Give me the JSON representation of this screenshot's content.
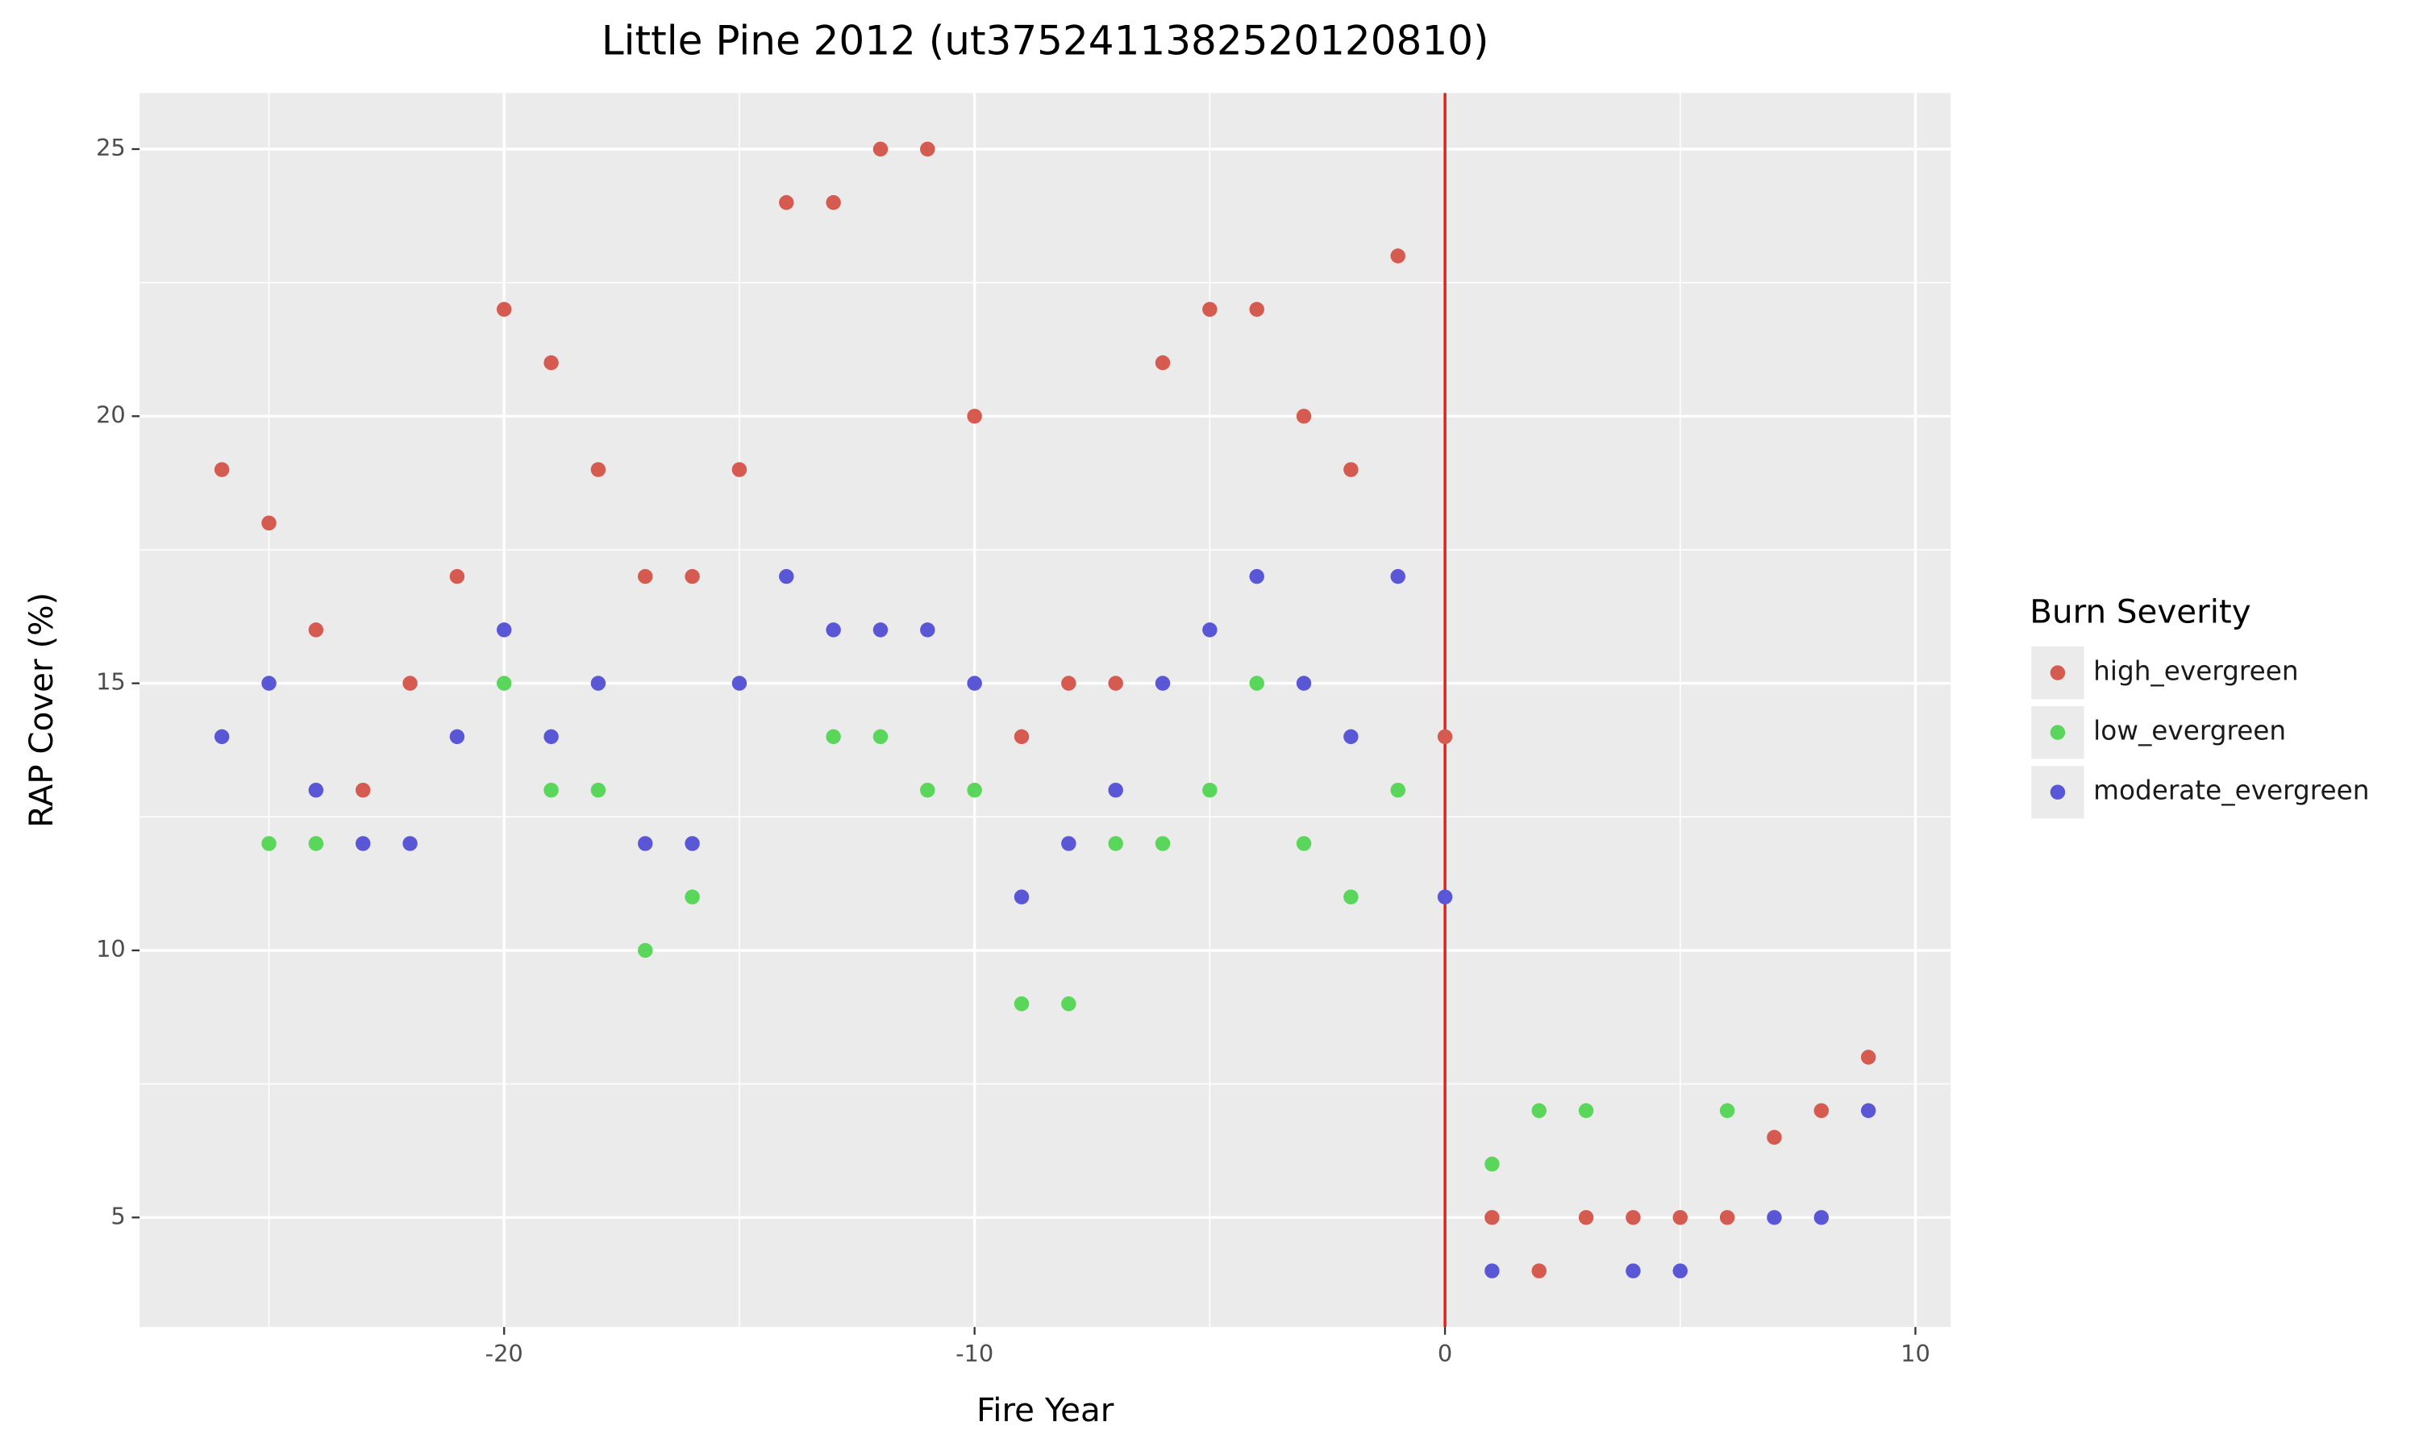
{
  "chart_data": {
    "type": "scatter",
    "title": "Little Pine 2012 (ut3752411382520120810)",
    "x_label": "Fire Year",
    "y_label": "RAP Cover (%)",
    "legend_title": "Burn Severity",
    "xlim": [
      -27.75,
      10.75
    ],
    "ylim": [
      2.95,
      26.05
    ],
    "xticks": [
      -20,
      -10,
      0,
      10
    ],
    "yticks": [
      5,
      10,
      15,
      20,
      25
    ],
    "minor_xticks": [
      -25,
      -15,
      -5,
      5
    ],
    "minor_yticks": [
      7.5,
      12.5,
      17.5,
      22.5
    ],
    "grid": true,
    "legend": "right",
    "vline": {
      "x": 0,
      "color": "#e0201a"
    },
    "series": [
      {
        "name": "high_evergreen",
        "color": "#D55A4F",
        "x": [
          -26,
          -25,
          -24,
          -23,
          -22,
          -21,
          -20,
          -19,
          -18,
          -17,
          -16,
          -15,
          -14,
          -13,
          -12,
          -11,
          -10,
          -9,
          -8,
          -7,
          -6,
          -5,
          -4,
          -3,
          -2,
          -1,
          0,
          1,
          2,
          3,
          4,
          5,
          6,
          7,
          8,
          9
        ],
        "values": [
          19,
          18,
          16,
          13,
          15,
          17,
          22,
          21,
          19,
          17,
          17,
          19,
          24,
          24,
          25,
          25,
          20,
          14,
          15,
          15,
          21,
          22,
          22,
          20,
          19,
          23,
          14,
          5,
          4,
          5,
          5,
          5,
          5,
          6.5,
          7,
          8
        ]
      },
      {
        "name": "low_evergreen",
        "color": "#5AD65A",
        "x": [
          -25,
          -24,
          -20,
          -19,
          -18,
          -17,
          -16,
          -13,
          -12,
          -11,
          -10,
          -9,
          -8,
          -7,
          -6,
          -5,
          -4,
          -3,
          -2,
          -1,
          1,
          2,
          3,
          6
        ],
        "values": [
          12,
          12,
          15,
          13,
          13,
          10,
          11,
          14,
          14,
          13,
          13,
          9,
          9,
          12,
          12,
          13,
          15,
          12,
          11,
          13,
          6,
          7,
          7,
          7
        ]
      },
      {
        "name": "moderate_evergreen",
        "color": "#5A57D6",
        "x": [
          -26,
          -25,
          -24,
          -23,
          -22,
          -21,
          -20,
          -19,
          -18,
          -17,
          -16,
          -15,
          -14,
          -13,
          -12,
          -11,
          -10,
          -9,
          -8,
          -7,
          -6,
          -5,
          -4,
          -3,
          -2,
          -1,
          0,
          1,
          4,
          5,
          7,
          8,
          9
        ],
        "values": [
          14,
          15,
          13,
          12,
          12,
          14,
          16,
          14,
          15,
          12,
          12,
          15,
          17,
          16,
          16,
          16,
          15,
          11,
          12,
          13,
          15,
          16,
          17,
          15,
          14,
          17,
          11,
          4,
          4,
          4,
          5,
          5,
          7
        ]
      }
    ]
  }
}
